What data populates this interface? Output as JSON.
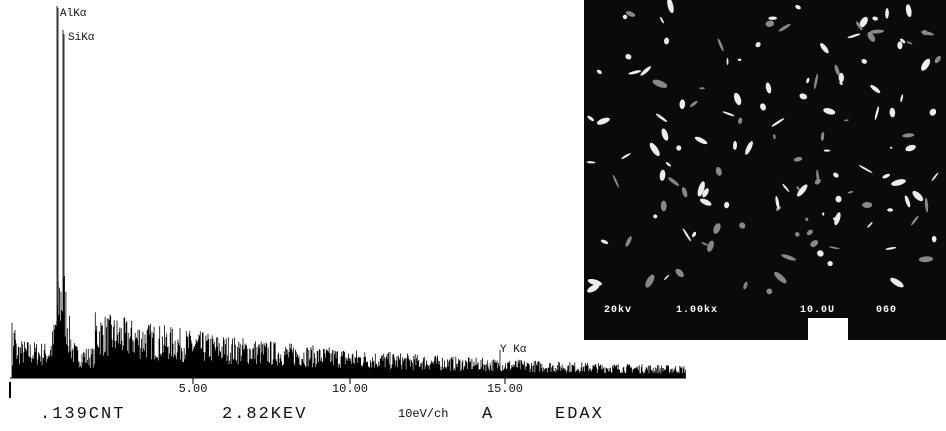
{
  "spectrum": {
    "peaks": [
      "AlKα",
      "SiKα",
      "Y Kα"
    ],
    "axis_ticks": [
      "5.00",
      "10.00",
      "15.00"
    ],
    "footer": [
      ".139CNT",
      "2.82KEV",
      "10eV/ch",
      "A",
      "EDAX"
    ]
  },
  "micrograph": {
    "scale_bar": [
      "20kv",
      "1.00kx",
      "10.0U",
      "060"
    ]
  }
}
